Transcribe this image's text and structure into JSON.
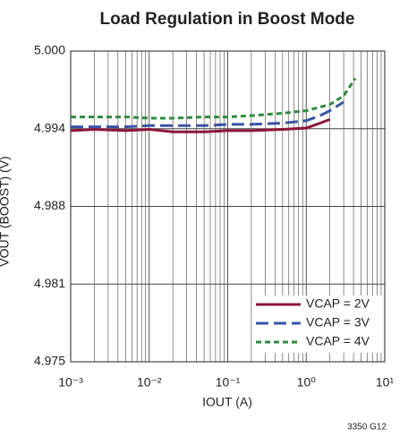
{
  "chart_data": {
    "type": "line",
    "title": "Load Regulation in Boost Mode",
    "x_label": "IOUT (A)",
    "y_label": "VOUT (BOOST) (V)",
    "note": "3350 G12",
    "xscale": "log",
    "xlim": [
      0.001,
      10
    ],
    "xticks": [
      {
        "value": 0.001,
        "label": "10⁻³"
      },
      {
        "value": 0.01,
        "label": "10⁻²"
      },
      {
        "value": 0.1,
        "label": "10⁻¹"
      },
      {
        "value": 1,
        "label": "10⁰"
      },
      {
        "value": 10,
        "label": "10¹"
      }
    ],
    "ylim": [
      4.975,
      5
    ],
    "yticks": [
      4.975,
      {
        "value": 4.98125,
        "label": "4.981"
      },
      {
        "value": 4.9875,
        "label": "4.988"
      },
      {
        "value": 4.99375,
        "label": "4.994"
      },
      {
        "value": 5,
        "label": "5.000"
      }
    ],
    "grid": true,
    "legend": "lower right",
    "series": [
      {
        "name": "VCAP = 2V",
        "color": "#8b1538",
        "dash": "solid",
        "x": [
          0.001,
          0.002,
          0.005,
          0.01,
          0.02,
          0.05,
          0.1,
          0.2,
          0.5,
          1,
          1.5,
          2
        ],
        "values": [
          4.9936,
          4.9937,
          4.9936,
          4.9937,
          4.9935,
          4.9935,
          4.9936,
          4.9936,
          4.9937,
          4.9938,
          4.9942,
          4.9945
        ]
      },
      {
        "name": "VCAP = 3V",
        "color": "#3a55a4",
        "dash": "long",
        "x": [
          0.001,
          0.002,
          0.005,
          0.01,
          0.02,
          0.05,
          0.1,
          0.2,
          0.5,
          1,
          1.5,
          2,
          3
        ],
        "values": [
          4.9939,
          4.9939,
          4.9939,
          4.994,
          4.994,
          4.994,
          4.9941,
          4.9941,
          4.9942,
          4.9944,
          4.9948,
          4.9952,
          4.9959
        ]
      },
      {
        "name": "VCAP = 4V",
        "color": "#2e8b3e",
        "dash": "short",
        "x": [
          0.001,
          0.002,
          0.005,
          0.01,
          0.02,
          0.05,
          0.1,
          0.2,
          0.5,
          1,
          2,
          3,
          4.2
        ],
        "values": [
          4.9947,
          4.9947,
          4.9947,
          4.9946,
          4.9946,
          4.9947,
          4.9947,
          4.9948,
          4.995,
          4.9952,
          4.9957,
          4.9964,
          4.9978
        ]
      }
    ]
  }
}
